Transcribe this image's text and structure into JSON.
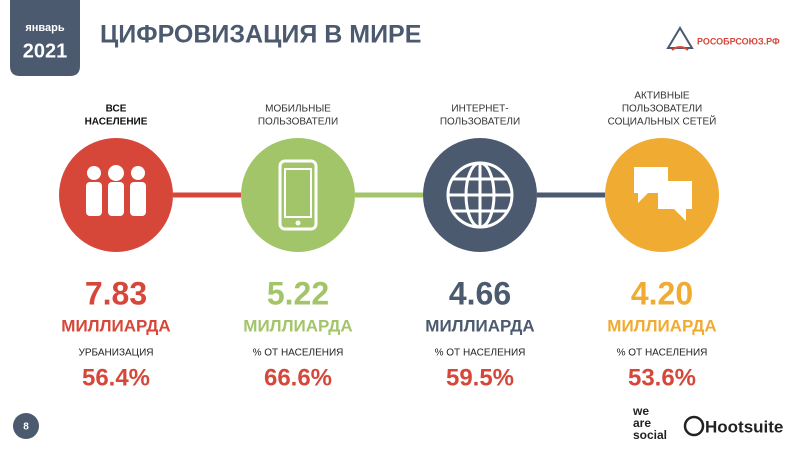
{
  "header": {
    "month": "январь",
    "year": "2021",
    "title": "ЦИФРОВИЗАЦИЯ В МИРЕ",
    "logo": "РОСОБРСОЮЗ.РФ"
  },
  "columns": [
    {
      "label_lines": [
        "ВСЕ",
        "НАСЕЛЕНИЕ"
      ],
      "value": "7.83",
      "unit": "МИЛЛИАРДА",
      "sublabel": "УРБАНИЗАЦИЯ",
      "percent": "56.4%",
      "color": "#d6473a"
    },
    {
      "label_lines": [
        "МОБИЛЬНЫЕ",
        "ПОЛЬЗОВАТЕЛИ"
      ],
      "value": "5.22",
      "unit": "МИЛЛИАРДА",
      "sublabel": "% ОТ НАСЕЛЕНИЯ",
      "percent": "66.6%",
      "color": "#a3c569"
    },
    {
      "label_lines": [
        "ИНТЕРНЕТ-",
        "ПОЛЬЗОВАТЕЛИ"
      ],
      "value": "4.66",
      "unit": "МИЛЛИАРДА",
      "sublabel": "% ОТ НАСЕЛЕНИЯ",
      "percent": "59.5%",
      "color": "#4c5a6f"
    },
    {
      "label_lines": [
        "АКТИВНЫЕ",
        "ПОЛЬЗОВАТЕЛИ",
        "СОЦИАЛЬНЫХ СЕТЕЙ"
      ],
      "value": "4.20",
      "unit": "МИЛЛИАРДА",
      "sublabel": "% ОТ НАСЕЛЕНИЯ",
      "percent": "53.6%",
      "color": "#f0ab32"
    }
  ],
  "footer": {
    "page": "8",
    "brand1_lines": [
      "we",
      "are",
      "social"
    ],
    "brand2": "Hootsuite"
  }
}
